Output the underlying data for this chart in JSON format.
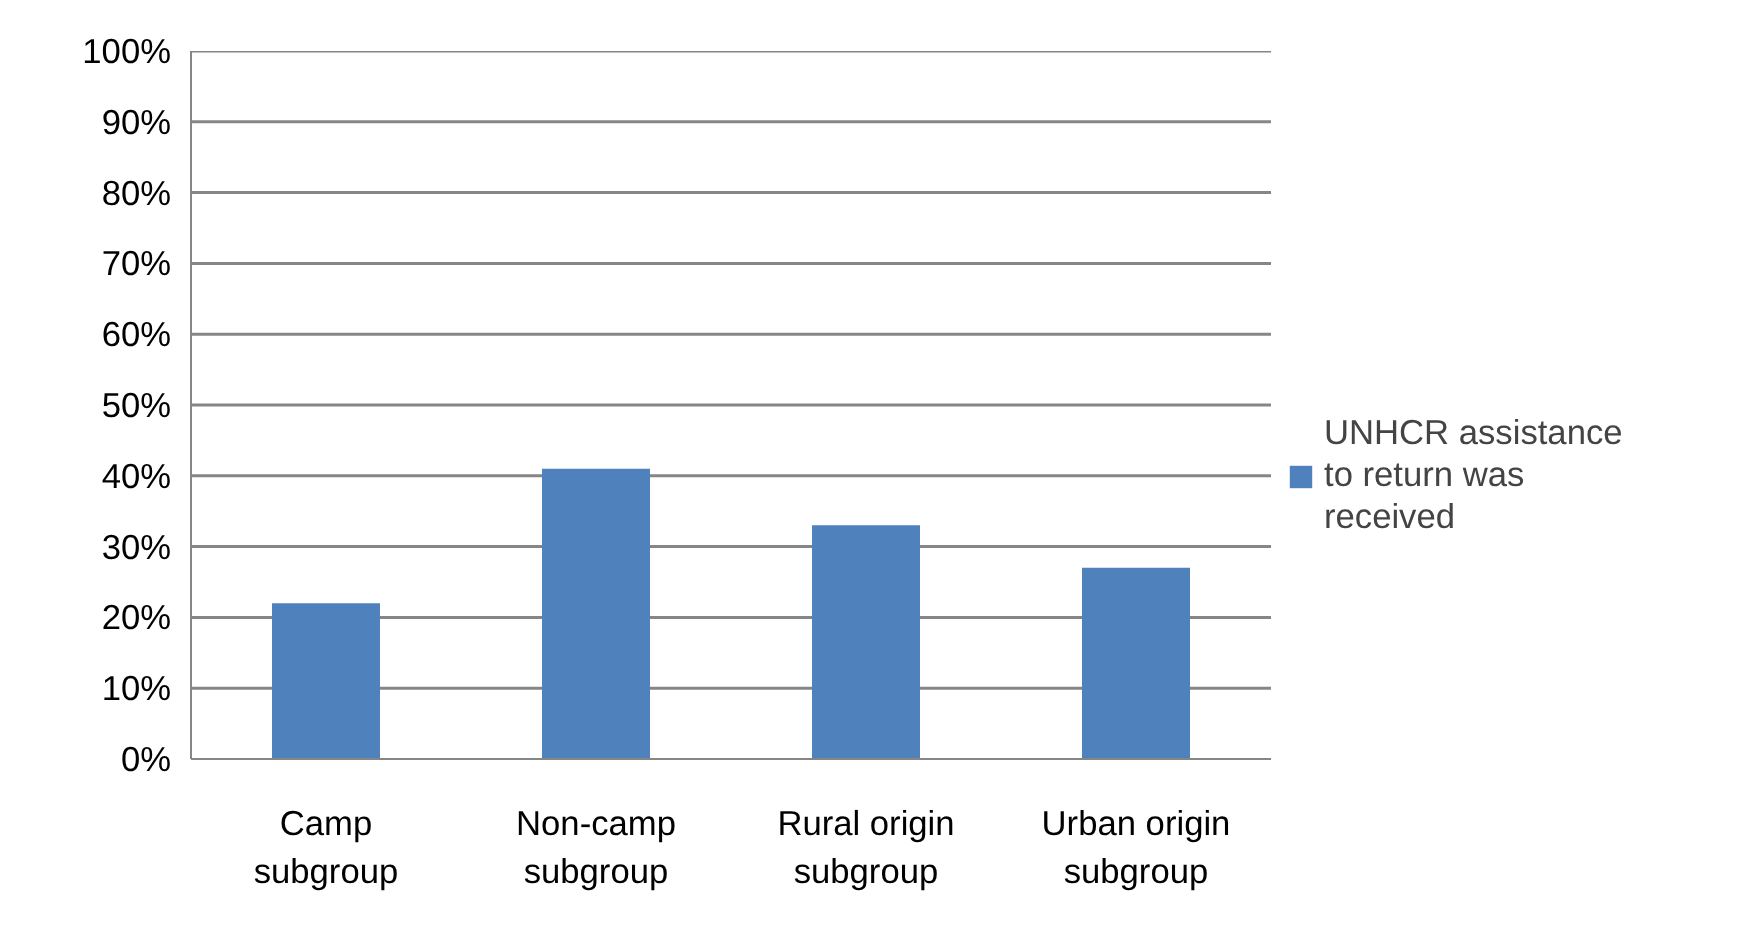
{
  "chart_data": {
    "type": "bar",
    "categories": [
      "Camp subgroup",
      "Non-camp subgroup",
      "Rural origin subgroup",
      "Urban origin subgroup"
    ],
    "series": [
      {
        "name": "UNHCR assistance to return was received",
        "color": "#4f81bd",
        "values": [
          22,
          41,
          33,
          27
        ]
      }
    ],
    "ylim": [
      0,
      100
    ],
    "yticks": [
      {
        "value": 0,
        "label": "0%"
      },
      {
        "value": 10,
        "label": "10%"
      },
      {
        "value": 20,
        "label": "20%"
      },
      {
        "value": 30,
        "label": "30%"
      },
      {
        "value": 40,
        "label": "40%"
      },
      {
        "value": 50,
        "label": "50%"
      },
      {
        "value": 60,
        "label": "60%"
      },
      {
        "value": 70,
        "label": "70%"
      },
      {
        "value": 80,
        "label": "80%"
      },
      {
        "value": 90,
        "label": "90%"
      },
      {
        "value": 100,
        "label": "100%"
      }
    ],
    "grid": "y",
    "legend": "right"
  }
}
